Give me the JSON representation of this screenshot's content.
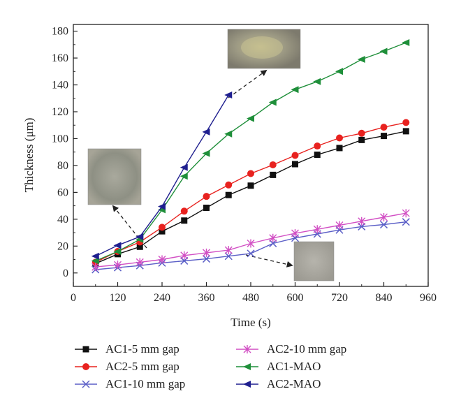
{
  "chart_data": {
    "type": "line",
    "xlabel": "Time (s)",
    "ylabel": "Thickness (μm)",
    "xlim": [
      0,
      960
    ],
    "ylim": [
      -10,
      185
    ],
    "xticks": [
      0,
      120,
      240,
      360,
      480,
      600,
      720,
      840,
      960
    ],
    "yticks": [
      0,
      20,
      40,
      60,
      80,
      100,
      120,
      140,
      160,
      180
    ],
    "grid": false,
    "legend_position": "bottom",
    "series": [
      {
        "name": "AC1-5 mm gap",
        "color": "#111111",
        "marker": "square",
        "x": [
          60,
          120,
          180,
          240,
          300,
          360,
          420,
          480,
          540,
          600,
          660,
          720,
          780,
          840,
          900
        ],
        "y": [
          7,
          14,
          19.5,
          31,
          39,
          48.5,
          58,
          65,
          73,
          81,
          88,
          93,
          99,
          102,
          105.5
        ]
      },
      {
        "name": "AC2-5 mm gap",
        "color": "#e8221f",
        "marker": "circle",
        "x": [
          60,
          120,
          180,
          240,
          300,
          360,
          420,
          480,
          540,
          600,
          660,
          720,
          780,
          840,
          900
        ],
        "y": [
          8,
          16,
          23,
          34,
          46,
          57,
          65.5,
          74,
          80.5,
          87.5,
          94.5,
          100.5,
          104,
          108.5,
          112
        ]
      },
      {
        "name": "AC1-10 mm gap",
        "color": "#5b5fc7",
        "marker": "x",
        "x": [
          60,
          120,
          180,
          240,
          300,
          360,
          420,
          480,
          540,
          600,
          660,
          720,
          780,
          840,
          900
        ],
        "y": [
          2.5,
          4,
          5.5,
          7.5,
          9,
          10.5,
          12.5,
          14.5,
          22,
          26,
          29,
          32,
          34.5,
          36,
          38
        ]
      },
      {
        "name": "AC2-10 mm gap",
        "color": "#d24fc4",
        "marker": "star",
        "x": [
          60,
          120,
          180,
          240,
          300,
          360,
          420,
          480,
          540,
          600,
          660,
          720,
          780,
          840,
          900
        ],
        "y": [
          4.5,
          6,
          8,
          10,
          13,
          15,
          17,
          22,
          26,
          29.5,
          32.5,
          35.5,
          38.5,
          41.5,
          44.5
        ]
      },
      {
        "name": "AC1-MAO",
        "color": "#1f8f3a",
        "marker": "triangle-left",
        "x": [
          60,
          120,
          180,
          240,
          300,
          360,
          420,
          480,
          540,
          600,
          660,
          720,
          780,
          840,
          900
        ],
        "y": [
          9,
          16,
          25,
          47,
          72,
          89,
          103.5,
          115,
          127,
          136.5,
          142.5,
          150,
          159,
          165,
          171.5
        ]
      },
      {
        "name": "AC2-MAO",
        "color": "#1f1f8f",
        "marker": "triangle-left",
        "x": [
          60,
          120,
          180,
          240,
          300,
          360,
          420
        ],
        "y": [
          12.5,
          20.5,
          27,
          49.5,
          78.5,
          105,
          132.5
        ]
      }
    ]
  }
}
